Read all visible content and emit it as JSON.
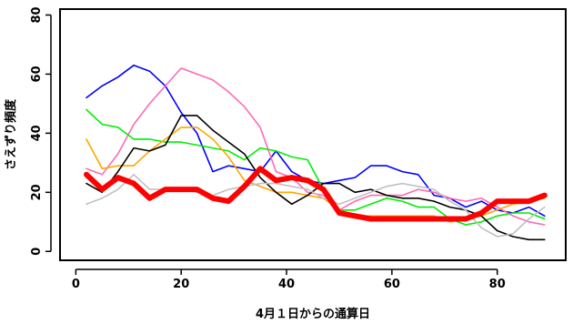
{
  "chart_data": {
    "type": "line",
    "title": "",
    "xlabel": "4月１日からの通算日",
    "ylabel": "さえずり頻度",
    "xlim": [
      -3,
      93
    ],
    "ylim": [
      -3,
      82
    ],
    "xticks": [
      0,
      20,
      40,
      60,
      80
    ],
    "yticks": [
      0,
      20,
      40,
      60,
      80
    ],
    "grid": false,
    "x": [
      2,
      5,
      8,
      11,
      14,
      17,
      20,
      23,
      26,
      29,
      32,
      35,
      38,
      41,
      44,
      47,
      50,
      53,
      56,
      59,
      62,
      65,
      68,
      71,
      74,
      77,
      80,
      83,
      86,
      89
    ],
    "series": [
      {
        "color": "#0000ff",
        "width": 1.6,
        "values": [
          52,
          56,
          59,
          63,
          61,
          56,
          47,
          40,
          27,
          29,
          28,
          27,
          34,
          27,
          24,
          23,
          24,
          25,
          29,
          29,
          27,
          26,
          19,
          18,
          15,
          17,
          14,
          13,
          15,
          12
        ]
      },
      {
        "color": "#ff69b4",
        "width": 1.6,
        "values": [
          28,
          26,
          33,
          43,
          50,
          56,
          62,
          60,
          58,
          54,
          49,
          42,
          27,
          25,
          20,
          19,
          14,
          17,
          19,
          19,
          19,
          21,
          20,
          18,
          17,
          18,
          15,
          12,
          10,
          9
        ]
      },
      {
        "color": "#00ee00",
        "width": 1.6,
        "values": [
          48,
          43,
          42,
          38,
          38,
          37,
          37,
          36,
          35,
          34,
          31,
          35,
          34,
          32,
          31,
          21,
          14,
          14,
          16,
          18,
          17,
          15,
          15,
          11,
          9,
          10,
          12,
          13,
          13,
          11
        ]
      },
      {
        "color": "#ffa500",
        "width": 1.6,
        "values": [
          38,
          28,
          29,
          29,
          34,
          38,
          42,
          42,
          38,
          32,
          24,
          22,
          20,
          20,
          19,
          18,
          14,
          12,
          12,
          12,
          12,
          12,
          12,
          10,
          11,
          12,
          14,
          16,
          17,
          18
        ]
      },
      {
        "color": "#000000",
        "width": 1.6,
        "values": [
          23,
          20,
          27,
          35,
          34,
          36,
          46,
          46,
          41,
          37,
          33,
          25,
          20,
          16,
          19,
          23,
          23,
          20,
          21,
          19,
          18,
          18,
          17,
          15,
          14,
          12,
          7,
          5,
          4,
          4
        ]
      },
      {
        "color": "#c0c0c0",
        "width": 1.6,
        "values": [
          16,
          18,
          21,
          26,
          21,
          21,
          21,
          20,
          19,
          21,
          22,
          23,
          23,
          22,
          21,
          18,
          16,
          18,
          20,
          22,
          23,
          22,
          21,
          17,
          14,
          8,
          5,
          6,
          11,
          15
        ]
      },
      {
        "color": "#ff0000",
        "width": 6,
        "values": [
          26,
          21,
          25,
          23,
          18,
          21,
          21,
          21,
          18,
          17,
          22,
          28,
          24,
          25,
          24,
          21,
          13,
          12,
          11,
          11,
          11,
          11,
          11,
          11,
          11,
          13,
          17,
          17,
          17,
          19
        ]
      }
    ]
  }
}
